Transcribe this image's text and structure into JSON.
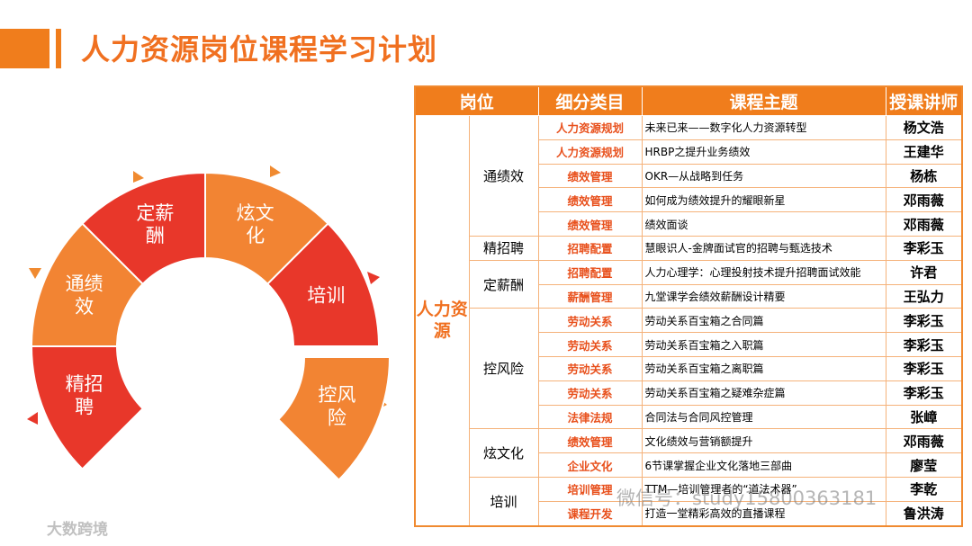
{
  "header": {
    "title": "人力资源岗位课程学习计划"
  },
  "ring": {
    "segments": [
      {
        "label": "精招聘",
        "color": "#e8372a"
      },
      {
        "label": "通绩效",
        "color": "#f28433"
      },
      {
        "label": "定薪酬",
        "color": "#e8372a"
      },
      {
        "label": "炫文化",
        "color": "#f28433"
      },
      {
        "label": "培训",
        "color": "#e8372a"
      },
      {
        "label": "控风险",
        "color": "#f28433"
      }
    ]
  },
  "table": {
    "columns": [
      "岗位",
      "细分类目",
      "课程主题",
      "授课讲师"
    ],
    "role": "人力资源",
    "groups": [
      {
        "name": "通绩效",
        "rows": [
          [
            "人力资源规划",
            "未来已来——数字化人力资源转型",
            "杨文浩"
          ],
          [
            "人力资源规划",
            "HRBP之提升业务绩效",
            "王建华"
          ],
          [
            "绩效管理",
            "OKR—从战略到任务",
            "杨栋"
          ],
          [
            "绩效管理",
            "如何成为绩效提升的耀眼新星",
            "邓雨薇"
          ],
          [
            "绩效管理",
            "绩效面谈",
            "邓雨薇"
          ]
        ]
      },
      {
        "name": "精招聘",
        "rows": [
          [
            "招聘配置",
            "慧眼识人-金牌面试官的招聘与甄选技术",
            "李彩玉"
          ]
        ]
      },
      {
        "name": "定薪酬",
        "rows": [
          [
            "招聘配置",
            "人力心理学：心理投射技术提升招聘面试效能",
            "许君"
          ],
          [
            "薪酬管理",
            "九堂课学会绩效薪酬设计精要",
            "王弘力"
          ]
        ]
      },
      {
        "name": "控风险",
        "rows": [
          [
            "劳动关系",
            "劳动关系百宝箱之合同篇",
            "李彩玉"
          ],
          [
            "劳动关系",
            "劳动关系百宝箱之入职篇",
            "李彩玉"
          ],
          [
            "劳动关系",
            "劳动关系百宝箱之离职篇",
            "李彩玉"
          ],
          [
            "劳动关系",
            "劳动关系百宝箱之疑难杂症篇",
            "李彩玉"
          ],
          [
            "法律法规",
            "合同法与合同风控管理",
            "张嶂"
          ]
        ]
      },
      {
        "name": "炫文化",
        "rows": [
          [
            "绩效管理",
            "文化绩效与营销额提升",
            "邓雨薇"
          ],
          [
            "企业文化",
            "6节课掌握企业文化落地三部曲",
            "廖莹"
          ]
        ]
      },
      {
        "name": "培训",
        "rows": [
          [
            "培训管理",
            "TTM—培训管理者的“道法术器”",
            "李乾"
          ],
          [
            "课程开发",
            "打造一堂精彩高效的直播课程",
            "鲁洪涛"
          ]
        ]
      }
    ]
  },
  "watermark": {
    "wechat": "微信号：study15800363181",
    "logo": "大数跨境"
  }
}
